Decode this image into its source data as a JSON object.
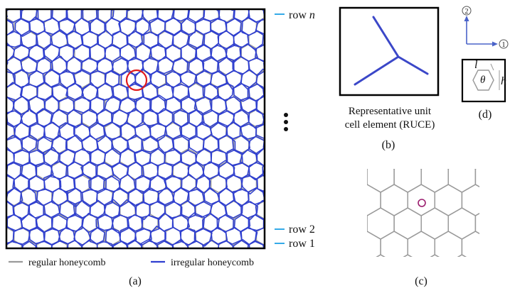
{
  "panel_a": {
    "row_labels": {
      "top": "row ",
      "top_italic": "n",
      "row2": "row 2",
      "row1": "row 1"
    },
    "legend": {
      "regular": "regular honeycomb",
      "irregular": "irregular honeycomb"
    },
    "caption": "(a)"
  },
  "panel_b": {
    "caption_line1": "Representative unit",
    "caption_line2": "cell element (RUCE)",
    "caption": "(b)"
  },
  "panel_c": {
    "caption": "(c)"
  },
  "panel_d": {
    "axis_2": "2",
    "axis_1": "1",
    "l_label": "l",
    "theta_label": "θ",
    "h_label": "h",
    "caption": "(d)"
  },
  "colors": {
    "regular": "#9a9a9a",
    "irregular": "#2f3fd0",
    "highlight": "#e21b1b",
    "axis": "#4a63c8",
    "marker_c": "#9b1d6e",
    "cyan_tick": "#1ea0e6"
  }
}
